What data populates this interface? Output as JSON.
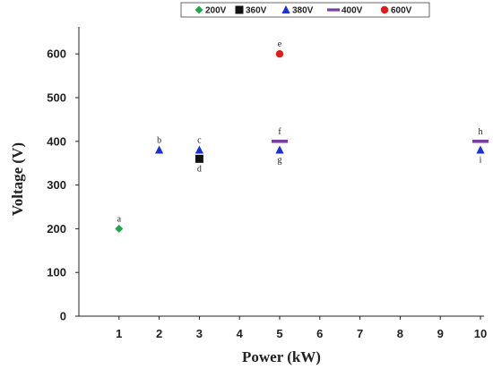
{
  "chart_data": {
    "type": "scatter",
    "title": "",
    "xlabel": "Power (kW)",
    "ylabel": "Voltage (V)",
    "xlim": [
      0,
      10
    ],
    "ylim": [
      0,
      650
    ],
    "x_ticks": [
      1,
      2,
      3,
      4,
      5,
      6,
      7,
      8,
      9,
      10
    ],
    "y_ticks": [
      0,
      100,
      200,
      300,
      400,
      500,
      600
    ],
    "grid": false,
    "legend_position": "top",
    "series": [
      {
        "name": "200V",
        "marker": "diamond",
        "color": "#1fa84a",
        "points": [
          {
            "x": 1,
            "y": 200,
            "label": "a"
          }
        ]
      },
      {
        "name": "360V",
        "marker": "square",
        "color": "#111111",
        "points": [
          {
            "x": 3,
            "y": 360,
            "label": "d"
          }
        ]
      },
      {
        "name": "380V",
        "marker": "triangle",
        "color": "#1a2fd6",
        "points": [
          {
            "x": 2,
            "y": 380,
            "label": "b"
          },
          {
            "x": 3,
            "y": 380,
            "label": "c"
          },
          {
            "x": 5,
            "y": 380,
            "label": "g"
          },
          {
            "x": 10,
            "y": 380,
            "label": "i"
          }
        ]
      },
      {
        "name": "400V",
        "marker": "dash",
        "color": "#7a3ea8",
        "points": [
          {
            "x": 5,
            "y": 400,
            "label": "f"
          },
          {
            "x": 10,
            "y": 400,
            "label": "h"
          }
        ]
      },
      {
        "name": "600V",
        "marker": "circle",
        "color": "#e21b1b",
        "points": [
          {
            "x": 5,
            "y": 600,
            "label": "e"
          }
        ]
      }
    ]
  }
}
